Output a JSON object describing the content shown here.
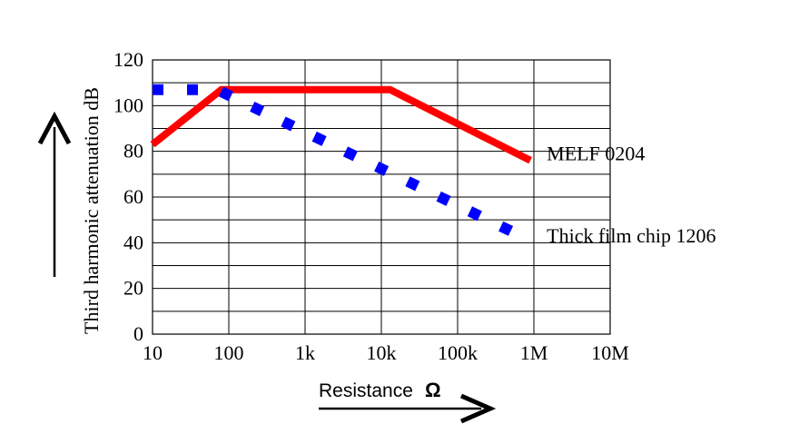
{
  "chart_data": {
    "type": "line",
    "title": "",
    "xlabel": "Resistance",
    "xlabel_unit": "Ω",
    "ylabel": "Third harmonic attenuation dB",
    "x_scale": "log",
    "x_ticks": [
      "10",
      "100",
      "1k",
      "10k",
      "100k",
      "1M",
      "10M"
    ],
    "x_tick_values": [
      10,
      100,
      1000,
      10000,
      100000,
      1000000,
      10000000
    ],
    "xlim": [
      10,
      10000000
    ],
    "y_ticks": [
      "0",
      "20",
      "40",
      "60",
      "80",
      "100",
      "120"
    ],
    "y_tick_values": [
      0,
      20,
      40,
      60,
      80,
      100,
      120
    ],
    "ylim": [
      0,
      120
    ],
    "grid": true,
    "series": [
      {
        "name": "MELF 0204",
        "color": "#ff0000",
        "style": "solid",
        "points": [
          [
            10,
            83
          ],
          [
            80,
            107
          ],
          [
            13000,
            107
          ],
          [
            900000,
            76
          ]
        ]
      },
      {
        "name": "Thick film chip 1206",
        "color": "#0000ff",
        "style": "dotted",
        "points": [
          [
            10,
            107
          ],
          [
            70,
            107
          ],
          [
            900000,
            41
          ]
        ]
      }
    ]
  }
}
